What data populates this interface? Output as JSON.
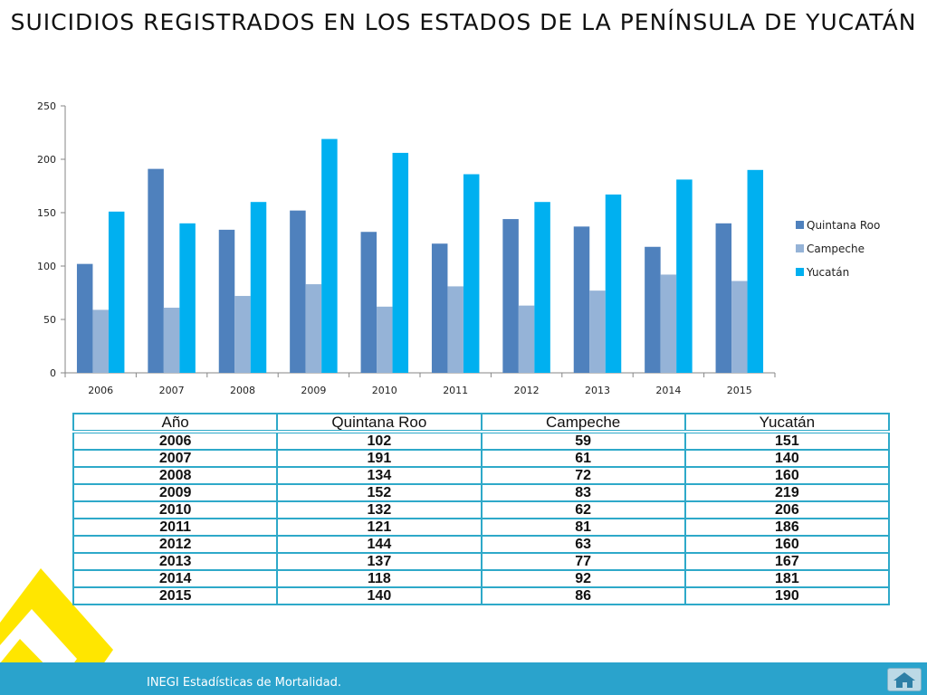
{
  "title": "SUICIDIOS REGISTRADOS EN LOS ESTADOS DE LA PENÍNSULA DE YUCATÁN",
  "chart_data": {
    "type": "bar",
    "title": "",
    "xlabel": "",
    "ylabel": "",
    "ylim": [
      0,
      250
    ],
    "yticks": [
      0,
      50,
      100,
      150,
      200,
      250
    ],
    "categories": [
      "2006",
      "2007",
      "2008",
      "2009",
      "2010",
      "2011",
      "2012",
      "2013",
      "2014",
      "2015"
    ],
    "series": [
      {
        "name": "Quintana Roo",
        "color": "#4f81bd",
        "values": [
          102,
          191,
          134,
          152,
          132,
          121,
          144,
          137,
          118,
          140
        ]
      },
      {
        "name": "Campeche",
        "color": "#95b3d7",
        "values": [
          59,
          61,
          72,
          83,
          62,
          81,
          63,
          77,
          92,
          86
        ]
      },
      {
        "name": "Yucatán",
        "color": "#00b0f0",
        "values": [
          151,
          140,
          160,
          219,
          206,
          186,
          160,
          167,
          181,
          190
        ]
      }
    ],
    "legend": "right",
    "grid": false
  },
  "table": {
    "headers": [
      "Año",
      "Quintana Roo",
      "Campeche",
      "Yucatán"
    ],
    "rows": [
      [
        "2006",
        "102",
        "59",
        "151"
      ],
      [
        "2007",
        "191",
        "61",
        "140"
      ],
      [
        "2008",
        "134",
        "72",
        "160"
      ],
      [
        "2009",
        "152",
        "83",
        "219"
      ],
      [
        "2010",
        "132",
        "62",
        "206"
      ],
      [
        "2011",
        "121",
        "81",
        "186"
      ],
      [
        "2012",
        "144",
        "63",
        "160"
      ],
      [
        "2013",
        "137",
        "77",
        "167"
      ],
      [
        "2014",
        "118",
        "92",
        "181"
      ],
      [
        "2015",
        "140",
        "86",
        "190"
      ]
    ]
  },
  "footer": {
    "source_text": "INEGI Estadísticas de Mortalidad.",
    "home_icon": "home-icon"
  },
  "colors": {
    "accent": "#2aa3cc",
    "logo_yellow": "#ffe600",
    "table_border": "#2ea9c9"
  }
}
